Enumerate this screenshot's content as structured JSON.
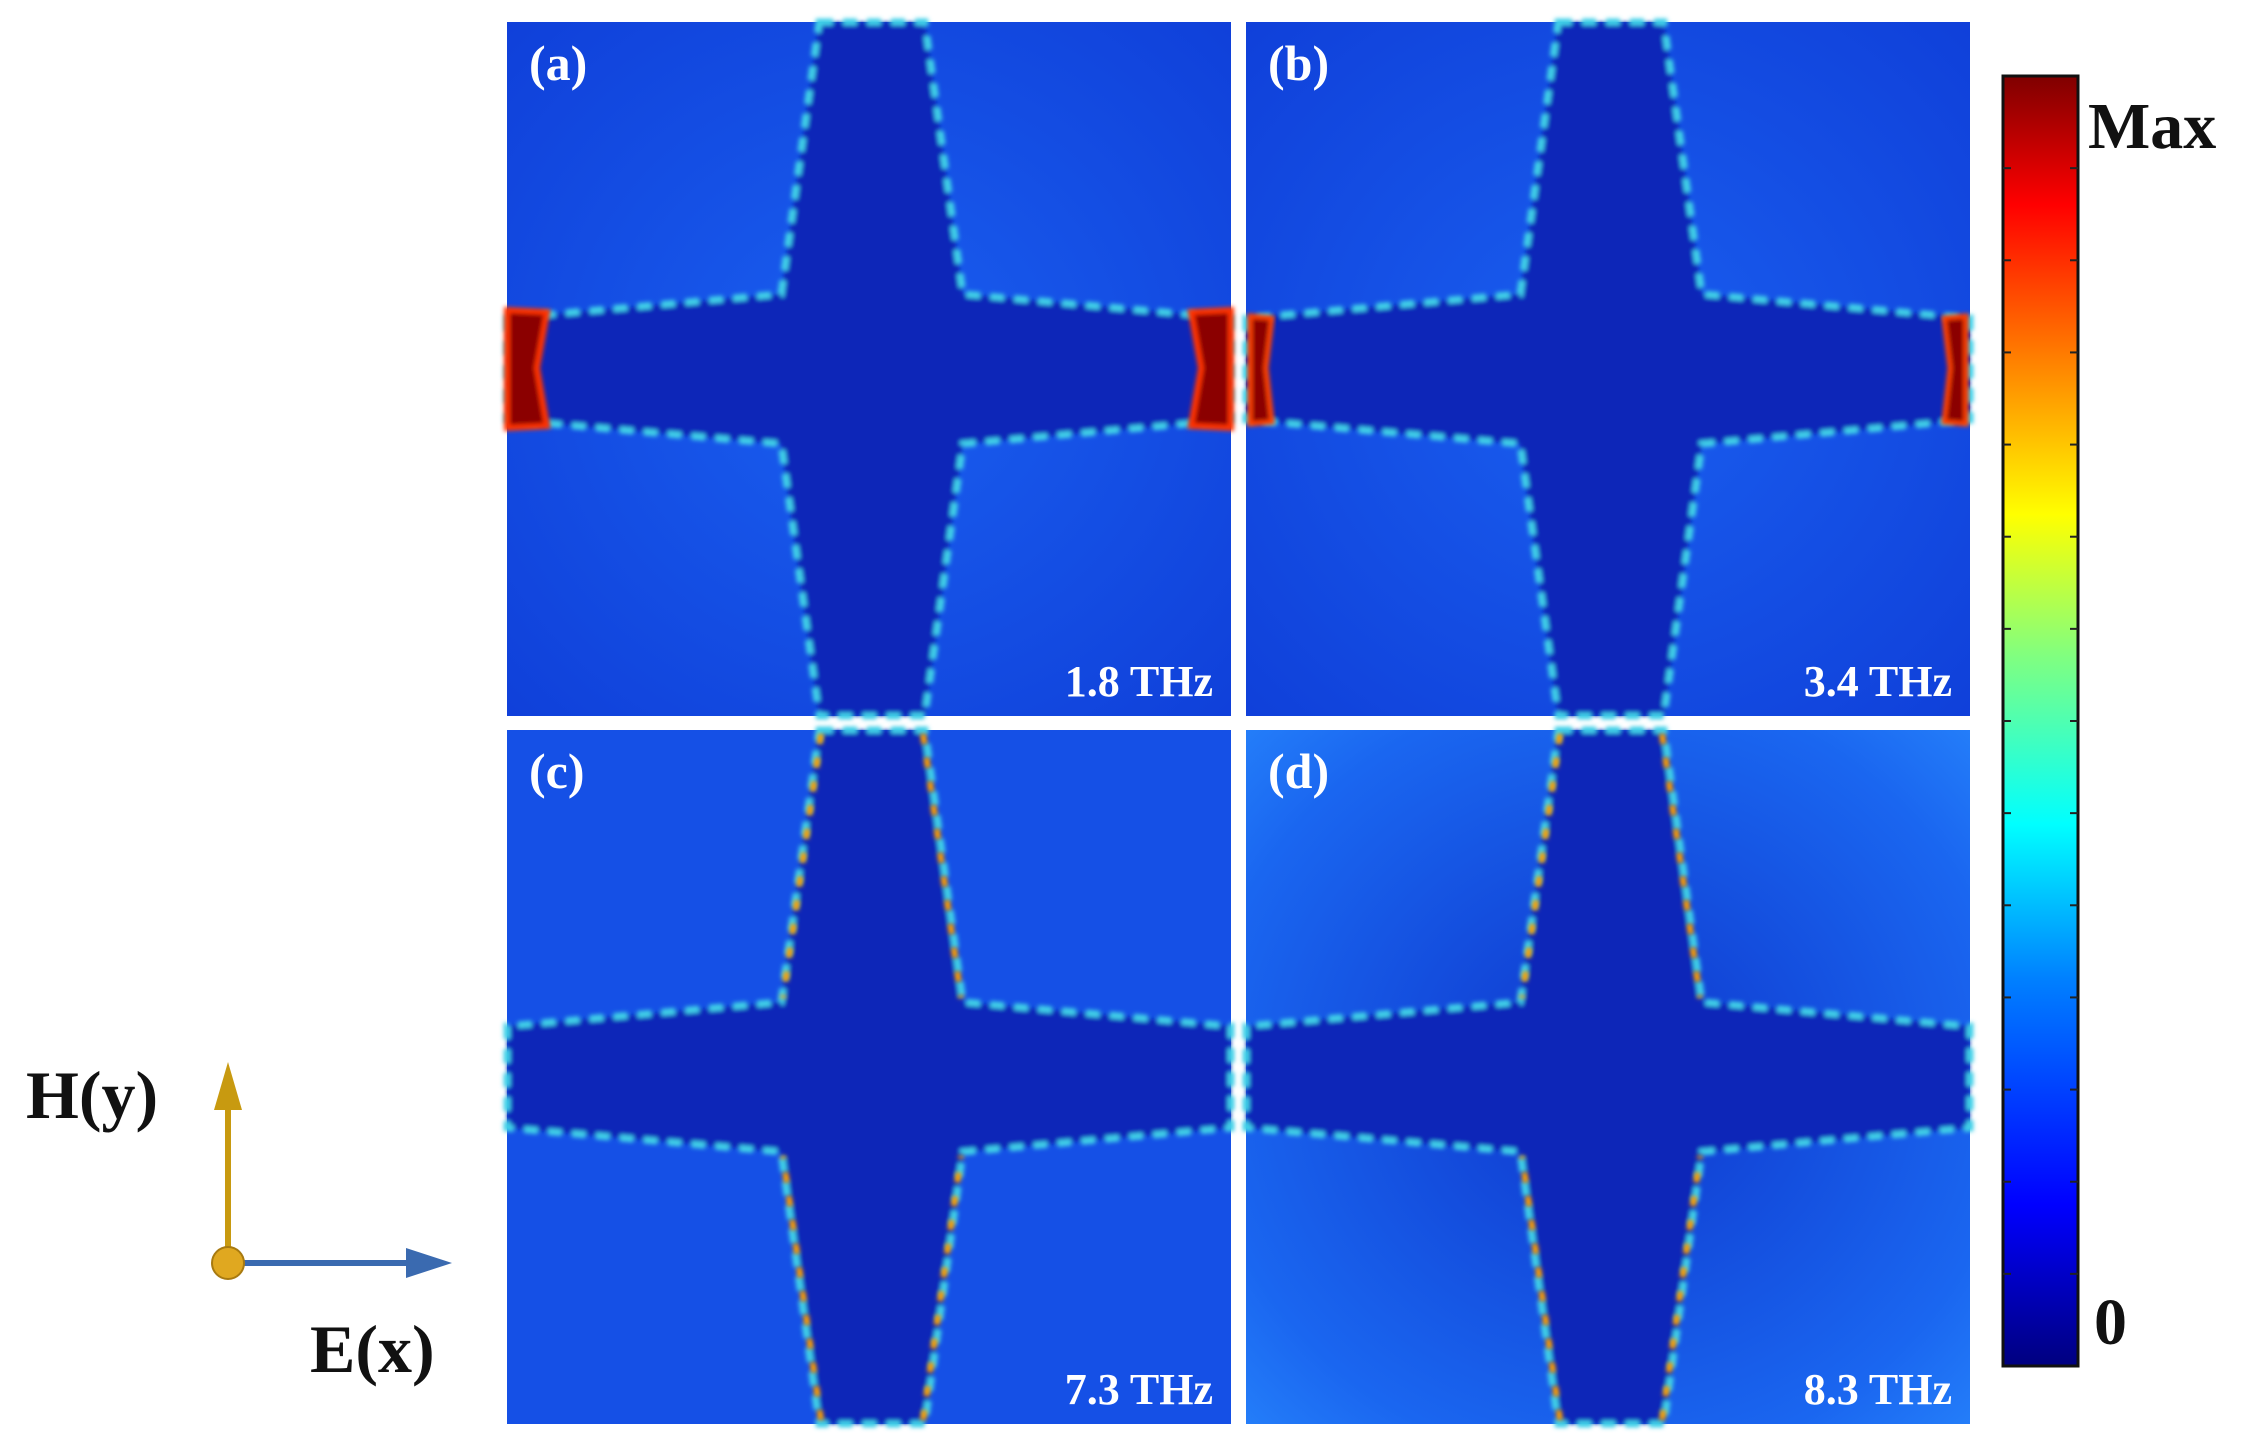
{
  "panels": [
    {
      "label": "(a)",
      "frequency": "1.8 THz"
    },
    {
      "label": "(b)",
      "frequency": "3.4 THz"
    },
    {
      "label": "(c)",
      "frequency": "7.3 THz"
    },
    {
      "label": "(d)",
      "frequency": "8.3 THz"
    }
  ],
  "colorbar": {
    "max_label": "Max",
    "min_label": "0",
    "colors": [
      "#00007f",
      "#0000ff",
      "#0080ff",
      "#00ffff",
      "#80ff80",
      "#ffff00",
      "#ff8000",
      "#ff0000",
      "#7f0000"
    ]
  },
  "axes_indicator": {
    "h_label": "H(y)",
    "e_label": "E(x)",
    "h_color": "#c89a10",
    "e_color": "#3a6ab0"
  },
  "colors": {
    "field_background": "#1446e0",
    "cross_interior": "#0a27b8",
    "edge_glow": "#3fd0e8",
    "hotspot": "#8b0000"
  }
}
